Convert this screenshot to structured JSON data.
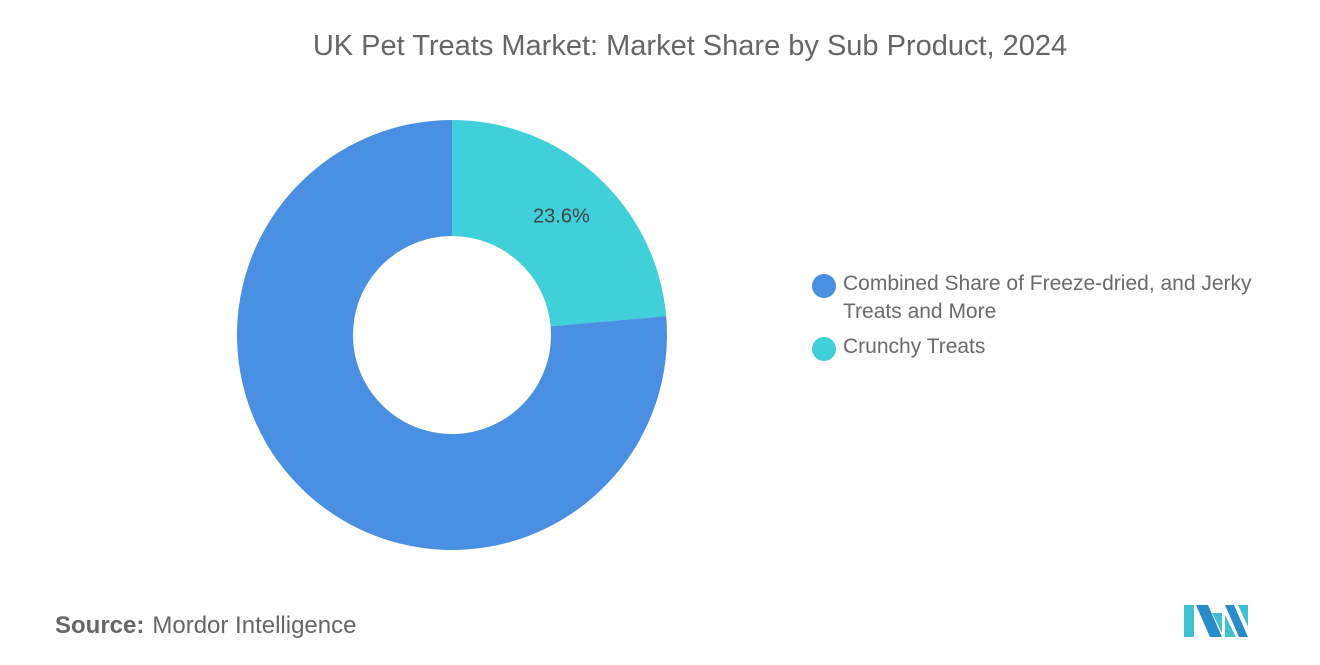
{
  "chart_data": {
    "type": "pie",
    "donut": true,
    "title": "UK Pet Treats Market: Market Share by Sub Product, 2024",
    "categories": [
      "Combined Share of Freeze-dried, and Jerky Treats and More",
      "Crunchy Treats"
    ],
    "values": [
      76.4,
      23.6
    ],
    "unit": "%",
    "data_labels": [
      "",
      "23.6%"
    ],
    "colors": [
      "#4a90e2",
      "#3fd0d9"
    ],
    "legend_position": "right"
  },
  "source": {
    "label": "Source:",
    "value": "Mordor Intelligence"
  },
  "logo": {
    "alt": "Mordor Intelligence"
  }
}
